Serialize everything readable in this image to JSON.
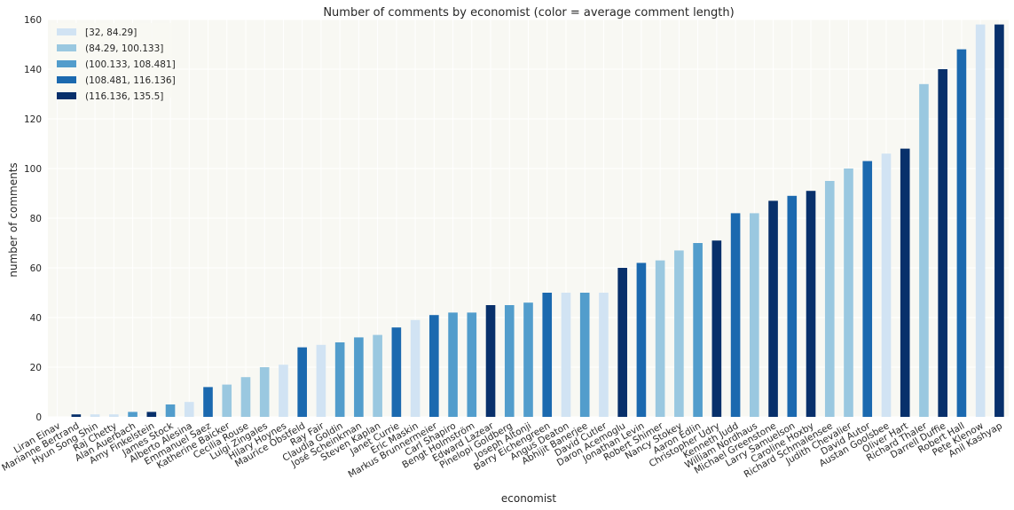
{
  "chart_data": {
    "type": "bar",
    "title": "Number of comments by economist (color = average comment length)",
    "xlabel": "economist",
    "ylabel": "number of comments",
    "ylim": [
      0,
      160
    ],
    "yticks": [
      0,
      20,
      40,
      60,
      80,
      100,
      120,
      140,
      160
    ],
    "grid": true,
    "legend_position": "top-left",
    "legend": [
      {
        "label": "[32, 84.29]",
        "color": "#d1e3f3"
      },
      {
        "label": "(84.29, 100.133]",
        "color": "#9ac8e0"
      },
      {
        "label": "(100.133, 108.481]",
        "color": "#529dcc"
      },
      {
        "label": "(108.481, 116.136]",
        "color": "#1b69af"
      },
      {
        "label": "(116.136, 135.5]",
        "color": "#08306b"
      }
    ],
    "categories": [
      "Liran Einav",
      "Marianne Bertrand",
      "Hyun Song Shin",
      "Raj Chetty",
      "Alan Auerbach",
      "Amy Finkelstein",
      "James Stock",
      "Alberto Alesina",
      "Emmanuel Saez",
      "Katherine Baicker",
      "Cecilia Rouse",
      "Luigi Zingales",
      "Hilary Hoynes",
      "Maurice Obstfeld",
      "Ray Fair",
      "Claudia Goldin",
      "José Scheinkman",
      "Steven Kaplan",
      "Janet Currie",
      "Eric Maskin",
      "Markus Brunnermeier",
      "Carl Shapiro",
      "Bengt Holmström",
      "Edward Lazear",
      "Pinelopi Goldberg",
      "Joseph Altonji",
      "Barry Eichengreen",
      "Angus Deaton",
      "Abhijit Banerjee",
      "David Cutler",
      "Daron Acemoglu",
      "Jonathan Levin",
      "Robert Shimer",
      "Nancy Stokey",
      "Aaron Edlin",
      "Christopher Udry",
      "Kenneth Judd",
      "William Nordhaus",
      "Michael Greenstone",
      "Larry Samuelson",
      "Caroline Hoxby",
      "Richard Schmalensee",
      "Judith Chevalier",
      "David Autor",
      "Austan Goolsbee",
      "Oliver Hart",
      "Richard Thaler",
      "Darrell Duffie",
      "Robert Hall",
      "Pete Klenow",
      "Anil Kashyap"
    ],
    "values": [
      0,
      1,
      1,
      1,
      2,
      2,
      5,
      6,
      12,
      13,
      16,
      20,
      21,
      28,
      29,
      30,
      32,
      33,
      36,
      39,
      41,
      42,
      42,
      45,
      45,
      46,
      50,
      50,
      50,
      50,
      60,
      62,
      63,
      67,
      70,
      71,
      82,
      82,
      87,
      89,
      91,
      95,
      100,
      103,
      106,
      108,
      134,
      140,
      148,
      158,
      158
    ],
    "color_bins": [
      0,
      4,
      0,
      0,
      2,
      4,
      2,
      0,
      3,
      1,
      1,
      1,
      0,
      3,
      0,
      2,
      2,
      1,
      3,
      0,
      3,
      2,
      2,
      4,
      2,
      2,
      3,
      0,
      2,
      0,
      4,
      3,
      1,
      1,
      2,
      4,
      3,
      1,
      4,
      3,
      4,
      1,
      1,
      3,
      0,
      4,
      1,
      4,
      3,
      0,
      4
    ]
  }
}
